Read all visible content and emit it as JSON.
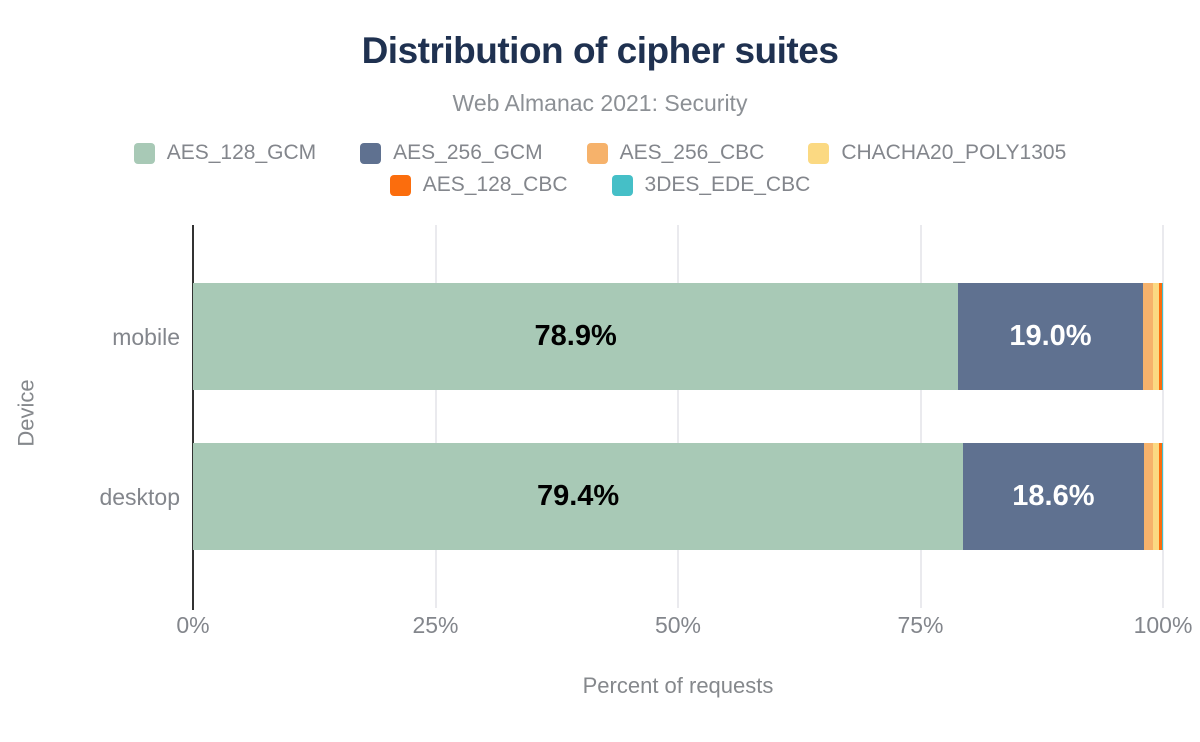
{
  "chart": {
    "title": "Distribution of cipher suites",
    "subtitle": "Web Almanac 2021: Security",
    "xlabel": "Percent of requests",
    "ylabel": "Device"
  },
  "chart_data": {
    "type": "bar",
    "stacked": true,
    "orientation": "horizontal",
    "title": "Distribution of cipher suites",
    "subtitle": "Web Almanac 2021: Security",
    "xlabel": "Percent of requests",
    "ylabel": "Device",
    "xlim": [
      0,
      100
    ],
    "x_ticks": [
      "0%",
      "25%",
      "50%",
      "75%",
      "100%"
    ],
    "grid": true,
    "legend_position": "top",
    "categories": [
      "mobile",
      "desktop"
    ],
    "series": [
      {
        "name": "AES_128_GCM",
        "color": "#a8c9b6",
        "values": [
          78.9,
          79.4
        ],
        "data_labels": [
          "78.9%",
          "79.4%"
        ],
        "label_color": "#000000"
      },
      {
        "name": "AES_256_GCM",
        "color": "#5f7190",
        "values": [
          19.0,
          18.6
        ],
        "data_labels": [
          "19.0%",
          "18.6%"
        ],
        "label_color": "#ffffff"
      },
      {
        "name": "AES_256_CBC",
        "color": "#f6b26b",
        "values": [
          1.1,
          1.0
        ]
      },
      {
        "name": "CHACHA20_POLY1305",
        "color": "#fbd982",
        "values": [
          0.6,
          0.6
        ]
      },
      {
        "name": "AES_128_CBC",
        "color": "#fb6d0d",
        "values": [
          0.3,
          0.3
        ]
      },
      {
        "name": "3DES_EDE_CBC",
        "color": "#45bfc7",
        "values": [
          0.1,
          0.1
        ]
      }
    ],
    "title_color": "#1f3150",
    "text_color": "#83868c"
  }
}
